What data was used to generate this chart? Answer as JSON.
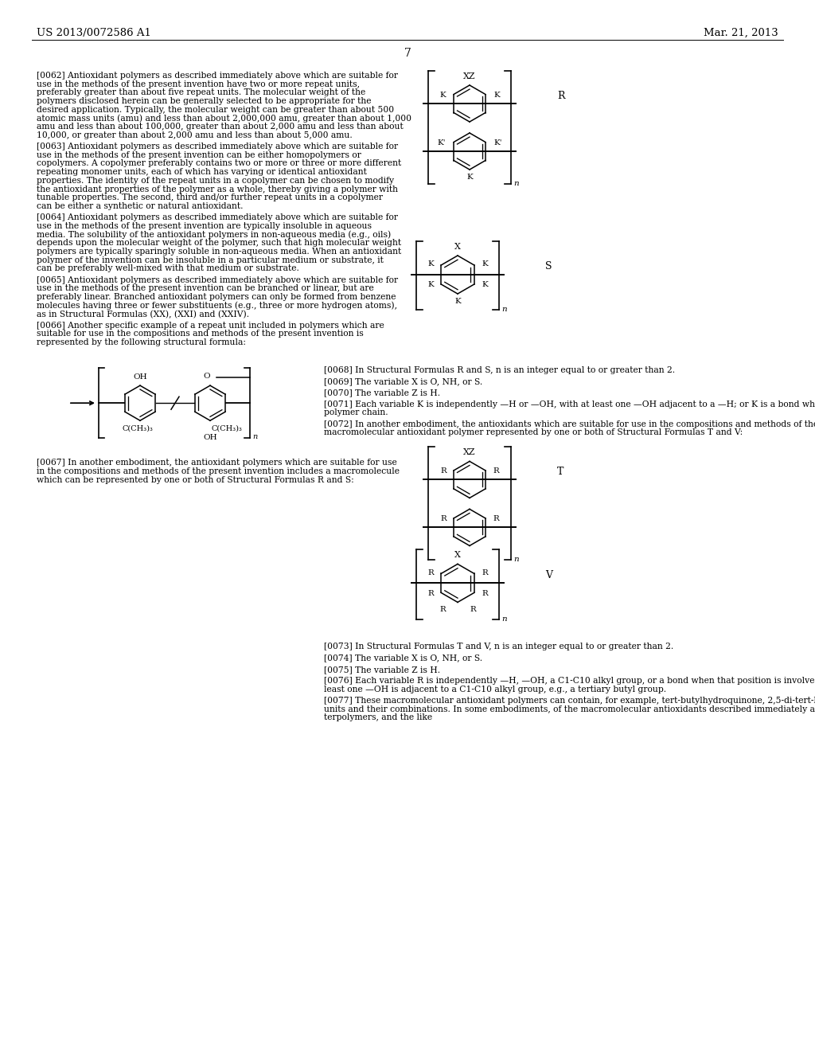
{
  "background_color": "#ffffff",
  "header_left": "US 2013/0072586 A1",
  "header_right": "Mar. 21, 2013",
  "page_number": "7"
}
